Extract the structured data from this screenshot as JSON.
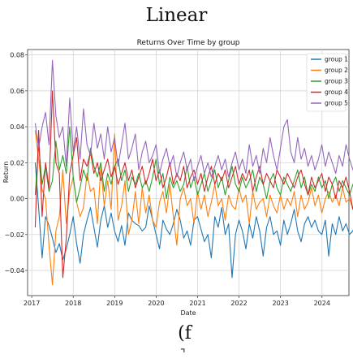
{
  "top_caption": "Linear",
  "bottom_caption": "(f",
  "bottom_mark": "⌝",
  "chart_data": {
    "type": "line",
    "title": "Returns Over Time by group",
    "xlabel": "Date",
    "ylabel": "Return",
    "xlim": [
      2016.9,
      2024.65
    ],
    "ylim": [
      -0.054,
      0.083
    ],
    "x_ticks": [
      "2017",
      "2018",
      "2019",
      "2020",
      "2021",
      "2022",
      "2023",
      "2024"
    ],
    "y_ticks": [
      -0.04,
      -0.02,
      0.0,
      0.02,
      0.04,
      0.06,
      0.08
    ],
    "y_tick_labels": [
      "−0.04",
      "−0.02",
      "0.00",
      "0.02",
      "0.04",
      "0.06",
      "0.08"
    ],
    "grid": true,
    "legend_position": "top-right",
    "x_start": 2017.083,
    "x_step": 0.0833,
    "series": [
      {
        "name": "group 1",
        "color": "#1f77b4",
        "values": [
          0.02,
          -0.005,
          -0.033,
          -0.01,
          -0.015,
          -0.022,
          -0.03,
          -0.025,
          -0.034,
          -0.028,
          -0.02,
          -0.01,
          -0.025,
          -0.036,
          -0.02,
          -0.012,
          -0.005,
          -0.016,
          -0.027,
          -0.012,
          -0.004,
          -0.016,
          -0.008,
          -0.018,
          -0.024,
          -0.015,
          -0.026,
          -0.008,
          -0.012,
          -0.014,
          -0.015,
          -0.018,
          -0.016,
          -0.004,
          -0.012,
          -0.02,
          -0.028,
          -0.012,
          -0.017,
          -0.02,
          -0.014,
          -0.006,
          -0.012,
          -0.022,
          -0.018,
          -0.026,
          -0.012,
          -0.01,
          -0.017,
          -0.024,
          -0.02,
          -0.033,
          -0.01,
          -0.016,
          -0.005,
          -0.02,
          -0.014,
          -0.044,
          -0.02,
          -0.012,
          -0.018,
          -0.028,
          -0.014,
          -0.022,
          -0.01,
          -0.018,
          -0.032,
          -0.016,
          -0.01,
          -0.02,
          -0.018,
          -0.026,
          -0.012,
          -0.02,
          -0.014,
          -0.006,
          -0.018,
          -0.024,
          -0.014,
          -0.01,
          -0.016,
          -0.012,
          -0.018,
          -0.02,
          -0.012,
          -0.032,
          -0.014,
          -0.02,
          -0.01,
          -0.018,
          -0.014,
          -0.02,
          -0.018,
          -0.01
        ]
      },
      {
        "name": "group 2",
        "color": "#ff7f0e",
        "values": [
          0.038,
          0.022,
          0.005,
          0.0,
          -0.026,
          -0.048,
          -0.018,
          -0.01,
          0.016,
          -0.014,
          0.004,
          0.012,
          -0.002,
          -0.01,
          -0.005,
          0.014,
          0.004,
          0.006,
          -0.014,
          0.018,
          -0.004,
          0.01,
          -0.006,
          0.036,
          -0.012,
          -0.004,
          0.01,
          -0.02,
          -0.012,
          0.004,
          -0.014,
          0.006,
          -0.008,
          0.002,
          -0.012,
          -0.016,
          -0.002,
          0.004,
          -0.008,
          0.008,
          -0.01,
          -0.026,
          0.0,
          0.006,
          -0.004,
          0.0,
          -0.014,
          0.004,
          -0.006,
          0.002,
          -0.01,
          -0.002,
          0.008,
          -0.004,
          0.0,
          -0.012,
          0.002,
          -0.004,
          -0.006,
          0.006,
          -0.002,
          0.002,
          -0.014,
          0.004,
          -0.006,
          -0.002,
          0.0,
          -0.01,
          0.002,
          -0.004,
          -0.008,
          0.002,
          -0.006,
          0.0,
          -0.004,
          0.004,
          -0.01,
          0.002,
          -0.006,
          -0.002,
          0.006,
          -0.004,
          0.002,
          -0.008,
          0.0,
          0.004,
          -0.002,
          0.002,
          -0.004,
          0.006,
          -0.002,
          0.0,
          -0.006,
          0.002
        ]
      },
      {
        "name": "group 3",
        "color": "#2ca02c",
        "values": [
          0.002,
          0.03,
          0.008,
          0.018,
          0.004,
          0.01,
          0.032,
          0.016,
          0.024,
          0.014,
          0.04,
          0.012,
          -0.002,
          0.006,
          0.016,
          0.01,
          0.028,
          0.018,
          0.012,
          0.02,
          0.004,
          0.014,
          0.008,
          0.018,
          0.022,
          0.01,
          0.016,
          0.004,
          0.012,
          0.008,
          0.014,
          0.006,
          0.01,
          0.004,
          0.012,
          0.022,
          0.008,
          0.014,
          0.0,
          0.012,
          0.006,
          0.01,
          0.004,
          0.008,
          0.018,
          0.006,
          0.012,
          0.002,
          0.008,
          0.014,
          0.004,
          0.01,
          0.016,
          0.006,
          0.012,
          0.002,
          0.01,
          0.018,
          0.008,
          0.004,
          0.012,
          0.006,
          0.01,
          0.016,
          0.004,
          0.012,
          0.008,
          0.0,
          0.01,
          0.014,
          0.006,
          0.002,
          0.012,
          0.008,
          0.004,
          0.01,
          0.016,
          0.006,
          0.012,
          0.002,
          0.008,
          0.004,
          0.012,
          0.006,
          0.01,
          0.0,
          0.008,
          0.012,
          0.004,
          0.01,
          0.006,
          0.002,
          0.008,
          0.006
        ]
      },
      {
        "name": "group 4",
        "color": "#d62728",
        "values": [
          -0.016,
          0.038,
          -0.01,
          0.02,
          0.006,
          0.06,
          0.02,
          0.014,
          -0.044,
          -0.022,
          0.014,
          0.024,
          0.034,
          0.01,
          0.022,
          0.018,
          0.026,
          0.014,
          0.02,
          0.01,
          0.016,
          0.022,
          0.012,
          0.018,
          0.008,
          0.014,
          0.02,
          0.01,
          0.016,
          0.006,
          0.012,
          0.018,
          0.008,
          0.014,
          0.022,
          0.01,
          0.016,
          0.006,
          0.012,
          0.02,
          0.008,
          0.014,
          0.01,
          0.018,
          0.006,
          0.012,
          0.016,
          0.008,
          0.014,
          0.004,
          0.012,
          0.018,
          0.008,
          0.014,
          0.01,
          0.016,
          0.006,
          0.012,
          0.018,
          0.008,
          0.014,
          0.01,
          0.016,
          0.004,
          0.012,
          0.018,
          0.008,
          0.014,
          0.01,
          0.006,
          0.016,
          0.012,
          0.008,
          0.014,
          0.01,
          0.006,
          0.012,
          0.016,
          0.008,
          0.002,
          0.012,
          0.006,
          0.01,
          0.014,
          0.004,
          0.012,
          0.008,
          0.0,
          0.01,
          0.006,
          0.012,
          0.004,
          -0.006,
          0.004
        ]
      },
      {
        "name": "group 5",
        "color": "#9467bd",
        "values": [
          0.042,
          0.028,
          0.04,
          0.048,
          0.03,
          0.077,
          0.046,
          0.034,
          0.04,
          0.018,
          0.056,
          0.026,
          0.04,
          0.022,
          0.05,
          0.03,
          0.024,
          0.042,
          0.028,
          0.036,
          0.022,
          0.04,
          0.026,
          0.034,
          0.018,
          0.03,
          0.042,
          0.022,
          0.028,
          0.036,
          0.016,
          0.026,
          0.032,
          0.02,
          0.024,
          0.03,
          0.014,
          0.022,
          0.028,
          0.018,
          0.024,
          0.012,
          0.02,
          0.026,
          0.016,
          0.022,
          0.01,
          0.018,
          0.024,
          0.014,
          0.02,
          0.012,
          0.018,
          0.024,
          0.016,
          0.022,
          0.012,
          0.02,
          0.026,
          0.016,
          0.022,
          0.014,
          0.03,
          0.018,
          0.024,
          0.014,
          0.028,
          0.02,
          0.034,
          0.024,
          0.016,
          0.028,
          0.04,
          0.044,
          0.026,
          0.02,
          0.034,
          0.022,
          0.028,
          0.018,
          0.024,
          0.016,
          0.022,
          0.03,
          0.018,
          0.026,
          0.02,
          0.014,
          0.024,
          0.018,
          0.03,
          0.022,
          0.016,
          0.02
        ]
      }
    ]
  }
}
